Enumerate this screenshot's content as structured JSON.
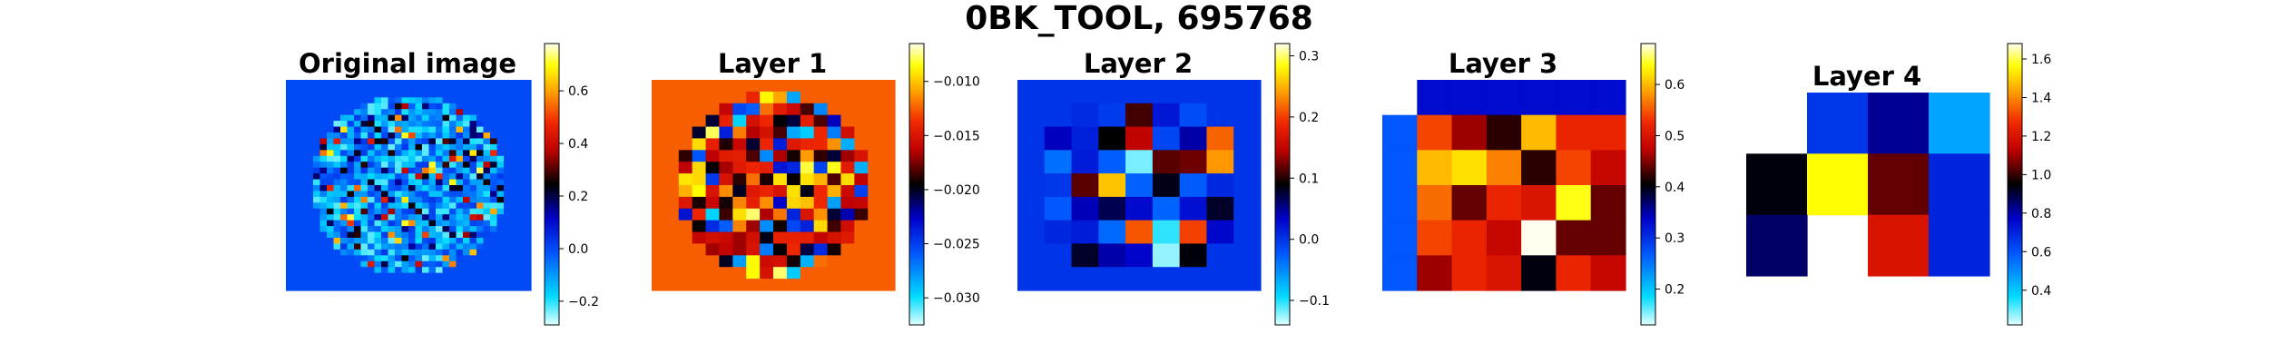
{
  "suptitle": "0BK_TOOL, 695768",
  "colormap": "jet-like (cyan-blue-black-red-yellow-white)",
  "chart_data": [
    {
      "type": "heatmap",
      "title": "Original image",
      "grid_size": [
        36,
        36
      ],
      "mask": "circular region, outside filled with constant value",
      "background_value": 0.0,
      "value_range": [
        -0.29,
        0.78
      ],
      "colorbar_ticks": [
        -0.2,
        0.0,
        0.2,
        0.4,
        0.6
      ],
      "colorbar_tick_labels": [
        "−0.2",
        "0.0",
        "0.2",
        "0.4",
        "0.6"
      ],
      "grid": false
    },
    {
      "type": "heatmap",
      "title": "Layer 1",
      "grid_size": [
        18,
        18
      ],
      "mask": "circular region, outside filled with constant value",
      "background_value": -0.0125,
      "value_range": [
        -0.0325,
        -0.0065
      ],
      "colorbar_ticks": [
        -0.03,
        -0.025,
        -0.02,
        -0.015,
        -0.01
      ],
      "colorbar_tick_labels": [
        "−0.030",
        "−0.025",
        "−0.020",
        "−0.015",
        "−0.010"
      ],
      "grid": false
    },
    {
      "type": "heatmap",
      "title": "Layer 2",
      "grid_size": [
        9,
        9
      ],
      "mask": "circular region, outside filled with constant value",
      "background_value": 0.0,
      "value_range": [
        -0.14,
        0.32
      ],
      "colorbar_ticks": [
        -0.1,
        0.0,
        0.1,
        0.2,
        0.3
      ],
      "colorbar_tick_labels": [
        "−0.1",
        "0.0",
        "0.1",
        "0.2",
        "0.3"
      ],
      "grid": false
    },
    {
      "type": "heatmap",
      "title": "Layer 3",
      "grid_size": [
        6,
        7
      ],
      "value_range": [
        0.13,
        0.68
      ],
      "colorbar_ticks": [
        0.2,
        0.3,
        0.4,
        0.5,
        0.6
      ],
      "colorbar_tick_labels": [
        "0.2",
        "0.3",
        "0.4",
        "0.5",
        "0.6"
      ],
      "grid": false
    },
    {
      "type": "heatmap",
      "title": "Layer 4",
      "grid_size": [
        3,
        4
      ],
      "value_range": [
        0.22,
        1.68
      ],
      "colorbar_ticks": [
        0.4,
        0.6,
        0.8,
        1.0,
        1.2,
        1.4,
        1.6
      ],
      "colorbar_tick_labels": [
        "0.4",
        "0.6",
        "0.8",
        "1.0",
        "1.2",
        "1.4",
        "1.6"
      ],
      "grid": false
    }
  ]
}
